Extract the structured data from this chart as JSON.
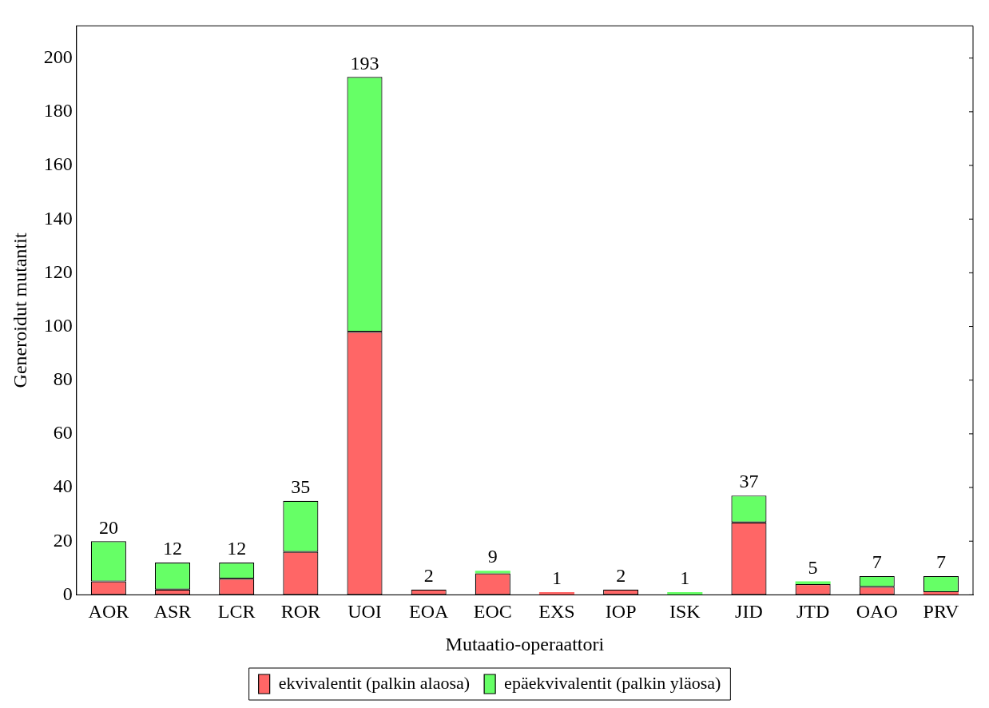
{
  "chart_data": {
    "type": "bar",
    "stacked": true,
    "xlabel": "Mutaatio-operaattori",
    "ylabel": "Generoidut mutantit",
    "categories": [
      "AOR",
      "ASR",
      "LCR",
      "ROR",
      "UOI",
      "EOA",
      "EOC",
      "EXS",
      "IOP",
      "ISK",
      "JID",
      "JTD",
      "OAO",
      "PRV"
    ],
    "series": [
      {
        "name": "ekvivalentit (palkin alaosa)",
        "color": "#ff6666",
        "values": [
          5,
          2,
          6,
          16,
          98,
          2,
          8,
          1,
          2,
          0,
          27,
          4,
          3,
          1
        ]
      },
      {
        "name": "epäekvivalentit (palkin yläosa)",
        "color": "#66ff66",
        "values": [
          15,
          10,
          6,
          19,
          95,
          0,
          1,
          0,
          0,
          1,
          10,
          1,
          4,
          6
        ]
      }
    ],
    "totals": [
      "20",
      "12",
      "12",
      "35",
      "193",
      "2",
      "9",
      "1",
      "2",
      "1",
      "37",
      "5",
      "7",
      "7"
    ],
    "ylim": [
      0,
      212
    ],
    "yticks": [
      0,
      20,
      40,
      60,
      80,
      100,
      120,
      140,
      160,
      180,
      200
    ],
    "grid": false,
    "legend": "bottom"
  }
}
